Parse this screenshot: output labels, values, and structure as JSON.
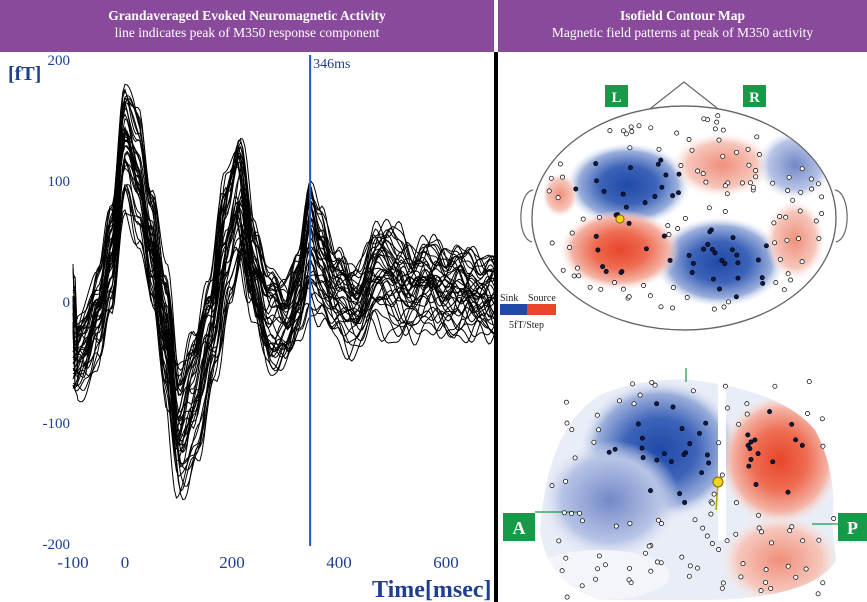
{
  "header_left": {
    "title": "Grandaveraged Evoked Neuromagnetic Activity",
    "subtitle": "line indicates peak of M350 response component"
  },
  "header_right": {
    "title": "Isofield Contour Map",
    "subtitle": "Magnetic field patterns at peak of M350 activity"
  },
  "chart_data": {
    "type": "line",
    "title": "Grandaveraged Evoked Neuromagnetic Activity",
    "ylabel": "[fT]",
    "xlabel": "Time[msec]",
    "ylim": [
      -200,
      200
    ],
    "xlim": [
      -100,
      700
    ],
    "yticks": [
      "200",
      "100",
      "0",
      "-100",
      "-200"
    ],
    "xticks": [
      "-100",
      "0",
      "200",
      "400",
      "600"
    ],
    "marker": {
      "x": 346,
      "label": "346ms"
    },
    "n_channels": 40,
    "key_points_x": [
      -100,
      -75,
      -50,
      -25,
      0,
      25,
      50,
      75,
      100,
      130,
      160,
      190,
      215,
      240,
      270,
      300,
      325,
      346,
      365,
      395,
      430,
      470,
      510,
      540,
      570,
      610,
      660,
      700
    ],
    "envelope_high": [
      -20,
      -10,
      20,
      80,
      175,
      150,
      90,
      20,
      -60,
      -30,
      10,
      100,
      130,
      60,
      20,
      10,
      40,
      95,
      70,
      40,
      20,
      60,
      55,
      40,
      45,
      40,
      35,
      30
    ],
    "envelope_low": [
      -90,
      -85,
      -60,
      -30,
      60,
      30,
      -20,
      -100,
      -180,
      -150,
      -80,
      -20,
      20,
      -30,
      -70,
      -60,
      -40,
      -20,
      -30,
      -40,
      -50,
      -30,
      -45,
      -40,
      -30,
      -40,
      -35,
      -40
    ]
  },
  "maps": {
    "top": {
      "left_label": "L",
      "right_label": "R"
    },
    "bottom": {
      "left_label": "A",
      "right_label": "P"
    },
    "legend": {
      "sink": "Sink",
      "source": "Source",
      "scale": "5fT/Step"
    },
    "colors": {
      "sink": "#1f4aa8",
      "source": "#e8462a"
    }
  }
}
